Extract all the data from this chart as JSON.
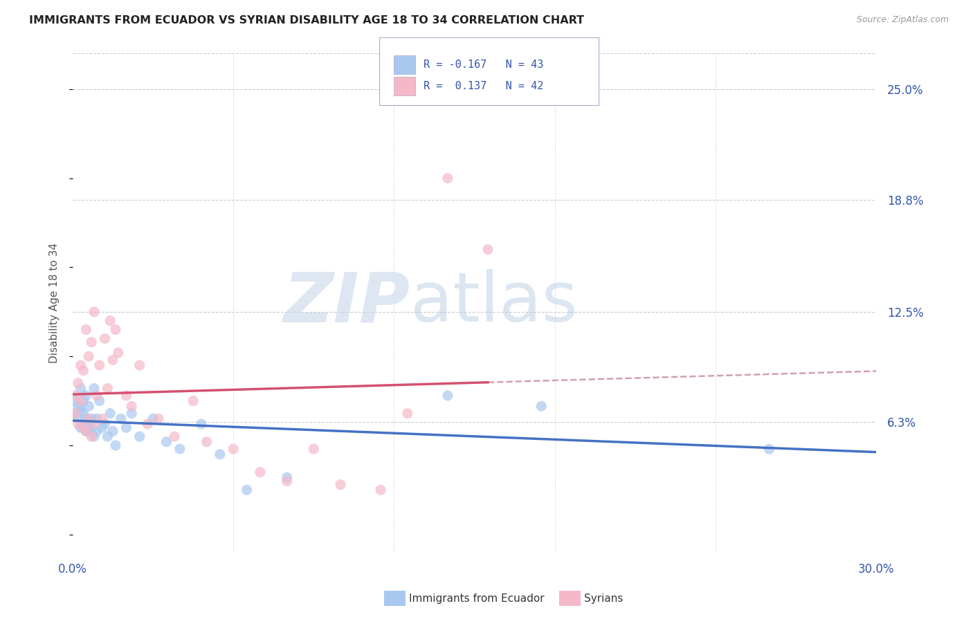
{
  "title": "IMMIGRANTS FROM ECUADOR VS SYRIAN DISABILITY AGE 18 TO 34 CORRELATION CHART",
  "source": "Source: ZipAtlas.com",
  "ylabel": "Disability Age 18 to 34",
  "ytick_labels": [
    "6.3%",
    "12.5%",
    "18.8%",
    "25.0%"
  ],
  "ytick_values": [
    0.063,
    0.125,
    0.188,
    0.25
  ],
  "xlim": [
    0.0,
    0.3
  ],
  "ylim": [
    -0.01,
    0.27
  ],
  "ecuador_color": "#a8c8f0",
  "ecuador_color_line": "#4472c4",
  "syrian_color": "#f4b8c8",
  "syrian_color_line": "#d45070",
  "trendline_dash_color": "#d0a0b0",
  "watermark_zip": "ZIP",
  "watermark_atlas": "atlas",
  "ecuador_x": [
    0.001,
    0.001,
    0.002,
    0.002,
    0.003,
    0.003,
    0.003,
    0.004,
    0.004,
    0.004,
    0.005,
    0.005,
    0.005,
    0.006,
    0.006,
    0.006,
    0.007,
    0.007,
    0.008,
    0.008,
    0.009,
    0.009,
    0.01,
    0.011,
    0.012,
    0.013,
    0.014,
    0.015,
    0.016,
    0.018,
    0.02,
    0.022,
    0.025,
    0.03,
    0.035,
    0.04,
    0.048,
    0.055,
    0.065,
    0.08,
    0.14,
    0.175,
    0.26
  ],
  "ecuador_y": [
    0.075,
    0.068,
    0.072,
    0.065,
    0.07,
    0.06,
    0.082,
    0.062,
    0.075,
    0.068,
    0.058,
    0.078,
    0.065,
    0.062,
    0.072,
    0.058,
    0.065,
    0.06,
    0.055,
    0.082,
    0.065,
    0.058,
    0.075,
    0.06,
    0.062,
    0.055,
    0.068,
    0.058,
    0.05,
    0.065,
    0.06,
    0.068,
    0.055,
    0.065,
    0.052,
    0.048,
    0.062,
    0.045,
    0.025,
    0.032,
    0.078,
    0.072,
    0.048
  ],
  "syrian_x": [
    0.001,
    0.001,
    0.002,
    0.002,
    0.003,
    0.003,
    0.004,
    0.004,
    0.005,
    0.005,
    0.006,
    0.006,
    0.007,
    0.007,
    0.008,
    0.008,
    0.009,
    0.01,
    0.011,
    0.012,
    0.013,
    0.014,
    0.015,
    0.016,
    0.017,
    0.02,
    0.022,
    0.025,
    0.028,
    0.032,
    0.038,
    0.045,
    0.05,
    0.06,
    0.07,
    0.08,
    0.09,
    0.1,
    0.115,
    0.125,
    0.14,
    0.155
  ],
  "syrian_y": [
    0.068,
    0.078,
    0.062,
    0.085,
    0.075,
    0.095,
    0.06,
    0.092,
    0.058,
    0.115,
    0.065,
    0.1,
    0.055,
    0.108,
    0.062,
    0.125,
    0.078,
    0.095,
    0.065,
    0.11,
    0.082,
    0.12,
    0.098,
    0.115,
    0.102,
    0.078,
    0.072,
    0.095,
    0.062,
    0.065,
    0.055,
    0.075,
    0.052,
    0.048,
    0.035,
    0.03,
    0.048,
    0.028,
    0.025,
    0.068,
    0.2,
    0.16
  ]
}
